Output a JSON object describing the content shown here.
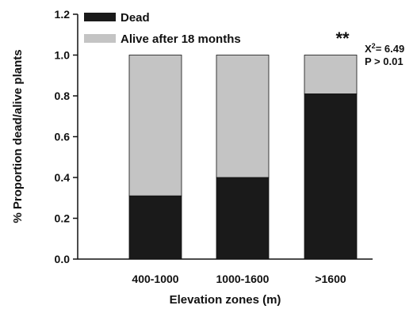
{
  "chart_data": {
    "type": "bar",
    "stacked": true,
    "categories": [
      "400-1000",
      "1000-1600",
      ">1600"
    ],
    "series": [
      {
        "name": "Dead",
        "values": [
          0.31,
          0.4,
          0.81
        ],
        "color": "#1a1a1a"
      },
      {
        "name": "Alive after 18 months",
        "values": [
          0.69,
          0.6,
          0.19
        ],
        "color": "#c4c4c4"
      }
    ],
    "xlabel": "Elevation zones (m)",
    "ylabel": "% Proportion dead/alive plants",
    "ylim": [
      0,
      1.2
    ],
    "yticks": [
      "0.0",
      "0.2",
      "0.4",
      "0.6",
      "0.8",
      "1.0",
      "1.2"
    ],
    "legend_position": "top-left",
    "grid": false,
    "annotations": {
      "significance": "**",
      "chi_prefix": "X",
      "chi_sup": "2",
      "chi_value": "= 6.49",
      "p_value": "P > 0.01"
    }
  }
}
